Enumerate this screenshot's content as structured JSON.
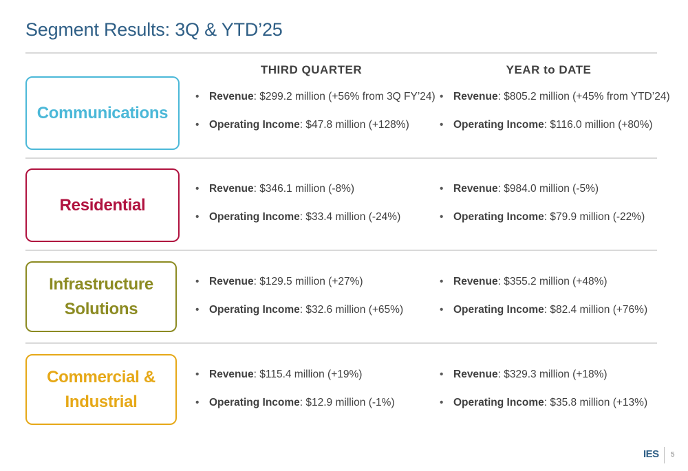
{
  "title": "Segment Results: 3Q & YTD’25",
  "columns": {
    "quarter": "THIRD QUARTER",
    "ytd": "YEAR to DATE"
  },
  "segments": [
    {
      "name": "Communications",
      "color": "#4bb8d8",
      "quarter": [
        {
          "label": "Revenue",
          "value": ": $299.2 million (+56% from 3Q FY’24)"
        },
        {
          "label": "Operating Income",
          "value": ": $47.8 million (+128%)"
        }
      ],
      "ytd": [
        {
          "label": "Revenue",
          "value": ": $805.2 million (+45% from YTD’24)"
        },
        {
          "label": "Operating Income",
          "value": ": $116.0 million (+80%)"
        }
      ]
    },
    {
      "name": "Residential",
      "color": "#b0123f",
      "quarter": [
        {
          "label": "Revenue",
          "value": ": $346.1 million (-8%)"
        },
        {
          "label": "Operating Income",
          "value": ": $33.4 million (-24%)"
        }
      ],
      "ytd": [
        {
          "label": "Revenue",
          "value": ": $984.0 million (-5%)"
        },
        {
          "label": "Operating Income",
          "value": ": $79.9 million (-22%)"
        }
      ]
    },
    {
      "name": "Infrastructure Solutions",
      "color": "#8c8b22",
      "quarter": [
        {
          "label": "Revenue",
          "value": ": $129.5 million (+27%)"
        },
        {
          "label": "Operating Income",
          "value": ": $32.6 million (+65%)"
        }
      ],
      "ytd": [
        {
          "label": "Revenue",
          "value": ": $355.2 million (+48%)"
        },
        {
          "label": "Operating Income",
          "value": ": $82.4 million (+76%)"
        }
      ]
    },
    {
      "name": "Commercial & Industrial",
      "color": "#e6a817",
      "quarter": [
        {
          "label": "Revenue",
          "value": ": $115.4 million (+19%)"
        },
        {
          "label": "Operating Income",
          "value": ": $12.9 million (-1%)"
        }
      ],
      "ytd": [
        {
          "label": "Revenue",
          "value": ": $329.3 million (+18%)"
        },
        {
          "label": "Operating Income",
          "value": ": $35.8 million (+13%)"
        }
      ]
    }
  ],
  "footer": {
    "logo": "IES",
    "page": "5"
  }
}
